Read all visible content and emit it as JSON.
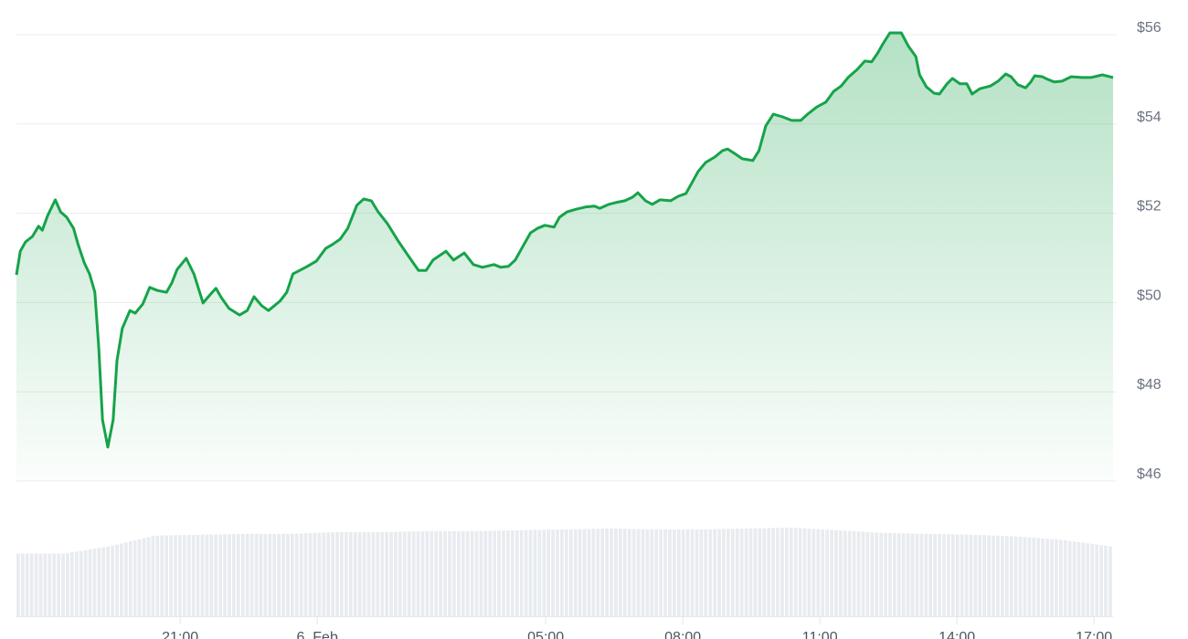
{
  "chart_data": {
    "type": "area",
    "title": "",
    "xlabel": "",
    "ylabel": "",
    "ylim": [
      46,
      56
    ],
    "y_ticks": [
      "$46",
      "$48",
      "$50",
      "$52",
      "$54",
      "$56"
    ],
    "y_tick_values": [
      46,
      48,
      50,
      52,
      54,
      56
    ],
    "y_axis_position": "right",
    "x_ticks": [
      {
        "label": "21:00",
        "time": "Feb 5 21:00"
      },
      {
        "label": "6. Feb",
        "time": "Feb 6 00:00"
      },
      {
        "label": "05:00",
        "time": "Feb 6 05:00"
      },
      {
        "label": "08:00",
        "time": "Feb 6 08:00"
      },
      {
        "label": "11:00",
        "time": "Feb 6 11:00"
      },
      {
        "label": "14:00",
        "time": "Feb 6 14:00"
      },
      {
        "label": "17:00",
        "time": "Feb 6 17:00"
      }
    ],
    "x_range": [
      "Feb 5 17:25",
      "Feb 6 17:25"
    ],
    "grid": "horizontal",
    "colors": {
      "line": "#16a34a",
      "fill": "#16a34a",
      "grid": "#ececec",
      "volume": "#e5e7eb"
    },
    "series": [
      {
        "points": [
          [
            "Feb 5 17:25",
            50.62
          ],
          [
            "Feb 5 17:30",
            51.15
          ],
          [
            "Feb 5 17:37",
            51.36
          ],
          [
            "Feb 5 17:46",
            51.48
          ],
          [
            "Feb 5 17:54",
            51.71
          ],
          [
            "Feb 5 17:59",
            51.62
          ],
          [
            "Feb 5 18:06",
            51.95
          ],
          [
            "Feb 5 18:16",
            52.3
          ],
          [
            "Feb 5 18:23",
            52.03
          ],
          [
            "Feb 5 18:31",
            51.91
          ],
          [
            "Feb 5 18:40",
            51.66
          ],
          [
            "Feb 5 18:46",
            51.3
          ],
          [
            "Feb 5 18:54",
            50.89
          ],
          [
            "Feb 5 19:01",
            50.64
          ],
          [
            "Feb 5 19:08",
            50.23
          ],
          [
            "Feb 5 19:13",
            49.01
          ],
          [
            "Feb 5 19:18",
            47.37
          ],
          [
            "Feb 5 19:25",
            46.76
          ],
          [
            "Feb 5 19:32",
            47.37
          ],
          [
            "Feb 5 19:37",
            48.7
          ],
          [
            "Feb 5 19:44",
            49.42
          ],
          [
            "Feb 5 19:54",
            49.82
          ],
          [
            "Feb 5 20:01",
            49.76
          ],
          [
            "Feb 5 20:11",
            49.97
          ],
          [
            "Feb 5 20:20",
            50.34
          ],
          [
            "Feb 5 20:30",
            50.27
          ],
          [
            "Feb 5 20:42",
            50.23
          ],
          [
            "Feb 5 20:49",
            50.44
          ],
          [
            "Feb 5 20:56",
            50.74
          ],
          [
            "Feb 5 21:08",
            50.99
          ],
          [
            "Feb 5 21:18",
            50.64
          ],
          [
            "Feb 5 21:30",
            49.99
          ],
          [
            "Feb 5 21:40",
            50.19
          ],
          [
            "Feb 5 21:47",
            50.32
          ],
          [
            "Feb 5 21:54",
            50.11
          ],
          [
            "Feb 5 22:04",
            49.87
          ],
          [
            "Feb 5 22:18",
            49.72
          ],
          [
            "Feb 5 22:28",
            49.82
          ],
          [
            "Feb 5 22:37",
            50.13
          ],
          [
            "Feb 5 22:47",
            49.93
          ],
          [
            "Feb 5 22:56",
            49.82
          ],
          [
            "Feb 5 23:11",
            50.03
          ],
          [
            "Feb 5 23:20",
            50.23
          ],
          [
            "Feb 5 23:28",
            50.64
          ],
          [
            "Feb 5 23:37",
            50.72
          ],
          [
            "Feb 5 23:47",
            50.81
          ],
          [
            "Feb 5 23:59",
            50.93
          ],
          [
            "Feb 6 00:11",
            51.21
          ],
          [
            "Feb 6 00:20",
            51.3
          ],
          [
            "Feb 6 00:30",
            51.42
          ],
          [
            "Feb 6 00:40",
            51.66
          ],
          [
            "Feb 6 00:52",
            52.18
          ],
          [
            "Feb 6 01:01",
            52.32
          ],
          [
            "Feb 6 01:11",
            52.28
          ],
          [
            "Feb 6 01:20",
            52.03
          ],
          [
            "Feb 6 01:32",
            51.77
          ],
          [
            "Feb 6 01:47",
            51.36
          ],
          [
            "Feb 6 02:01",
            51.01
          ],
          [
            "Feb 6 02:13",
            50.72
          ],
          [
            "Feb 6 02:23",
            50.72
          ],
          [
            "Feb 6 02:32",
            50.95
          ],
          [
            "Feb 6 02:49",
            51.15
          ],
          [
            "Feb 6 02:59",
            50.95
          ],
          [
            "Feb 6 03:13",
            51.11
          ],
          [
            "Feb 6 03:25",
            50.85
          ],
          [
            "Feb 6 03:37",
            50.79
          ],
          [
            "Feb 6 03:52",
            50.85
          ],
          [
            "Feb 6 04:01",
            50.79
          ],
          [
            "Feb 6 04:11",
            50.81
          ],
          [
            "Feb 6 04:20",
            50.95
          ],
          [
            "Feb 6 04:30",
            51.26
          ],
          [
            "Feb 6 04:40",
            51.56
          ],
          [
            "Feb 6 04:49",
            51.66
          ],
          [
            "Feb 6 04:59",
            51.73
          ],
          [
            "Feb 6 05:11",
            51.69
          ],
          [
            "Feb 6 05:18",
            51.91
          ],
          [
            "Feb 6 05:28",
            52.03
          ],
          [
            "Feb 6 05:40",
            52.09
          ],
          [
            "Feb 6 05:52",
            52.14
          ],
          [
            "Feb 6 06:04",
            52.16
          ],
          [
            "Feb 6 06:11",
            52.11
          ],
          [
            "Feb 6 06:23",
            52.2
          ],
          [
            "Feb 6 06:32",
            52.24
          ],
          [
            "Feb 6 06:44",
            52.28
          ],
          [
            "Feb 6 06:54",
            52.36
          ],
          [
            "Feb 6 07:01",
            52.46
          ],
          [
            "Feb 6 07:11",
            52.28
          ],
          [
            "Feb 6 07:20",
            52.2
          ],
          [
            "Feb 6 07:30",
            52.3
          ],
          [
            "Feb 6 07:44",
            52.28
          ],
          [
            "Feb 6 07:54",
            52.38
          ],
          [
            "Feb 6 08:04",
            52.44
          ],
          [
            "Feb 6 08:11",
            52.65
          ],
          [
            "Feb 6 08:20",
            52.93
          ],
          [
            "Feb 6 08:30",
            53.14
          ],
          [
            "Feb 6 08:42",
            53.26
          ],
          [
            "Feb 6 08:52",
            53.4
          ],
          [
            "Feb 6 08:59",
            53.44
          ],
          [
            "Feb 6 09:08",
            53.34
          ],
          [
            "Feb 6 09:18",
            53.22
          ],
          [
            "Feb 6 09:32",
            53.18
          ],
          [
            "Feb 6 09:40",
            53.4
          ],
          [
            "Feb 6 09:49",
            53.96
          ],
          [
            "Feb 6 09:59",
            54.22
          ],
          [
            "Feb 6 10:11",
            54.16
          ],
          [
            "Feb 6 10:23",
            54.08
          ],
          [
            "Feb 6 10:35",
            54.08
          ],
          [
            "Feb 6 10:44",
            54.22
          ],
          [
            "Feb 6 10:56",
            54.38
          ],
          [
            "Feb 6 11:08",
            54.49
          ],
          [
            "Feb 6 11:18",
            54.73
          ],
          [
            "Feb 6 11:28",
            54.85
          ],
          [
            "Feb 6 11:37",
            55.04
          ],
          [
            "Feb 6 11:49",
            55.22
          ],
          [
            "Feb 6 11:59",
            55.41
          ],
          [
            "Feb 6 12:08",
            55.39
          ],
          [
            "Feb 6 12:16",
            55.59
          ],
          [
            "Feb 6 12:23",
            55.8
          ],
          [
            "Feb 6 12:32",
            56.04
          ],
          [
            "Feb 6 12:47",
            56.04
          ],
          [
            "Feb 6 12:56",
            55.75
          ],
          [
            "Feb 6 13:06",
            55.51
          ],
          [
            "Feb 6 13:11",
            55.1
          ],
          [
            "Feb 6 13:20",
            54.83
          ],
          [
            "Feb 6 13:30",
            54.69
          ],
          [
            "Feb 6 13:37",
            54.67
          ],
          [
            "Feb 6 13:47",
            54.9
          ],
          [
            "Feb 6 13:54",
            55.02
          ],
          [
            "Feb 6 14:04",
            54.9
          ],
          [
            "Feb 6 14:13",
            54.9
          ],
          [
            "Feb 6 14:20",
            54.67
          ],
          [
            "Feb 6 14:30",
            54.79
          ],
          [
            "Feb 6 14:44",
            54.85
          ],
          [
            "Feb 6 14:54",
            54.96
          ],
          [
            "Feb 6 15:04",
            55.12
          ],
          [
            "Feb 6 15:11",
            55.06
          ],
          [
            "Feb 6 15:20",
            54.88
          ],
          [
            "Feb 6 15:30",
            54.81
          ],
          [
            "Feb 6 15:37",
            54.94
          ],
          [
            "Feb 6 15:42",
            55.08
          ],
          [
            "Feb 6 15:52",
            55.06
          ],
          [
            "Feb 6 15:59",
            55.0
          ],
          [
            "Feb 6 16:08",
            54.94
          ],
          [
            "Feb 6 16:18",
            54.96
          ],
          [
            "Feb 6 16:30",
            55.06
          ],
          [
            "Feb 6 16:44",
            55.04
          ],
          [
            "Feb 6 16:56",
            55.04
          ],
          [
            "Feb 6 17:11",
            55.1
          ],
          [
            "Feb 6 17:25",
            55.04
          ]
        ]
      }
    ],
    "volume_relative_hourly": [
      70,
      70,
      78,
      90,
      91,
      92,
      92,
      94,
      94,
      95,
      95,
      96,
      97,
      98,
      97,
      97,
      98,
      99,
      96,
      93,
      92,
      91,
      89,
      85,
      78
    ]
  }
}
